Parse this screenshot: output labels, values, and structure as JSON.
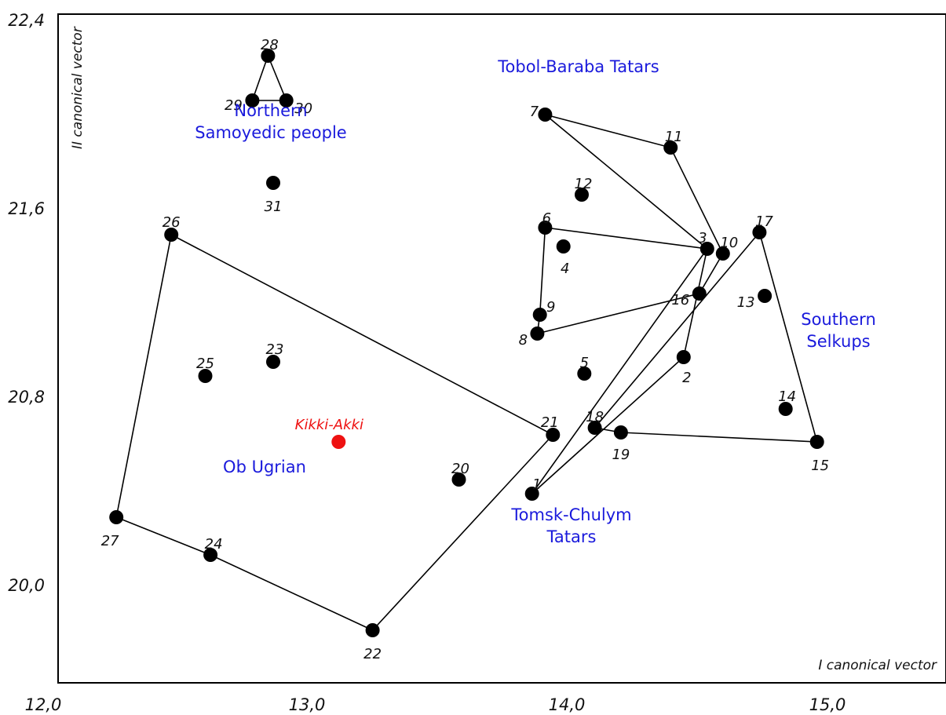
{
  "chart_data": {
    "type": "scatter",
    "xlabel": "I canonical vector",
    "ylabel": "II canonical vector",
    "xlim": [
      12.0,
      15.5
    ],
    "ylim": [
      19.55,
      22.4
    ],
    "x_ticks": [
      "12,0",
      "13,0",
      "14,0",
      "15,0"
    ],
    "y_ticks": [
      "22,4",
      "21,6",
      "20,8",
      "20,0"
    ],
    "grid": false,
    "point_color": "#000000",
    "highlight_color": "#ee1111",
    "group_label_color": "#1a1adc",
    "points": [
      {
        "id": "1",
        "x": 13.87,
        "y": 20.39
      },
      {
        "id": "2",
        "x": 14.45,
        "y": 20.97
      },
      {
        "id": "3",
        "x": 14.54,
        "y": 21.43
      },
      {
        "id": "4",
        "x": 13.99,
        "y": 21.44
      },
      {
        "id": "5",
        "x": 14.07,
        "y": 20.9
      },
      {
        "id": "6",
        "x": 13.92,
        "y": 21.52
      },
      {
        "id": "7",
        "x": 13.92,
        "y": 22.0
      },
      {
        "id": "8",
        "x": 13.89,
        "y": 21.07
      },
      {
        "id": "9",
        "x": 13.9,
        "y": 21.15
      },
      {
        "id": "10",
        "x": 14.6,
        "y": 21.41
      },
      {
        "id": "11",
        "x": 14.4,
        "y": 21.86
      },
      {
        "id": "12",
        "x": 14.06,
        "y": 21.66
      },
      {
        "id": "13",
        "x": 14.76,
        "y": 21.23
      },
      {
        "id": "14",
        "x": 14.84,
        "y": 20.75
      },
      {
        "id": "15",
        "x": 14.96,
        "y": 20.61
      },
      {
        "id": "16",
        "x": 14.51,
        "y": 21.24
      },
      {
        "id": "17",
        "x": 14.74,
        "y": 21.5
      },
      {
        "id": "18",
        "x": 14.11,
        "y": 20.67
      },
      {
        "id": "19",
        "x": 14.21,
        "y": 20.65
      },
      {
        "id": "20",
        "x": 13.59,
        "y": 20.45
      },
      {
        "id": "21",
        "x": 13.95,
        "y": 20.64
      },
      {
        "id": "22",
        "x": 13.26,
        "y": 19.81
      },
      {
        "id": "23",
        "x": 12.88,
        "y": 20.95
      },
      {
        "id": "24",
        "x": 12.64,
        "y": 20.13
      },
      {
        "id": "25",
        "x": 12.62,
        "y": 20.89
      },
      {
        "id": "26",
        "x": 12.49,
        "y": 21.49
      },
      {
        "id": "27",
        "x": 12.28,
        "y": 20.29
      },
      {
        "id": "28",
        "x": 12.86,
        "y": 22.25
      },
      {
        "id": "29",
        "x": 12.8,
        "y": 22.06
      },
      {
        "id": "30",
        "x": 12.93,
        "y": 22.06
      },
      {
        "id": "31",
        "x": 12.88,
        "y": 21.71
      }
    ],
    "highlight": {
      "label": "Kikki-Akki",
      "x": 13.13,
      "y": 20.61
    },
    "groups": [
      {
        "name": "Northern Samoyedic people",
        "lines": [
          "Northern",
          "Samoyedic people"
        ],
        "hull": [
          "28",
          "30",
          "29"
        ]
      },
      {
        "name": "Tobol-Baraba Tatars",
        "lines": [
          "Tobol-Baraba Tatars"
        ],
        "hull": [
          "7",
          "11",
          "10",
          "16",
          "8",
          "9",
          "6",
          "3"
        ]
      },
      {
        "name": "Southern Selkups",
        "lines": [
          "Southern",
          "Selkups"
        ],
        "hull": [
          "17",
          "15",
          "19",
          "18"
        ]
      },
      {
        "name": "Tomsk-Chulym Tatars",
        "lines": [
          "Tomsk-Chulym",
          "Tatars"
        ],
        "hull": [
          "1",
          "2",
          "3"
        ]
      },
      {
        "name": "Ob Ugrian",
        "lines": [
          "Ob Ugrian"
        ],
        "hull": [
          "26",
          "21",
          "22",
          "24",
          "27"
        ]
      }
    ]
  }
}
